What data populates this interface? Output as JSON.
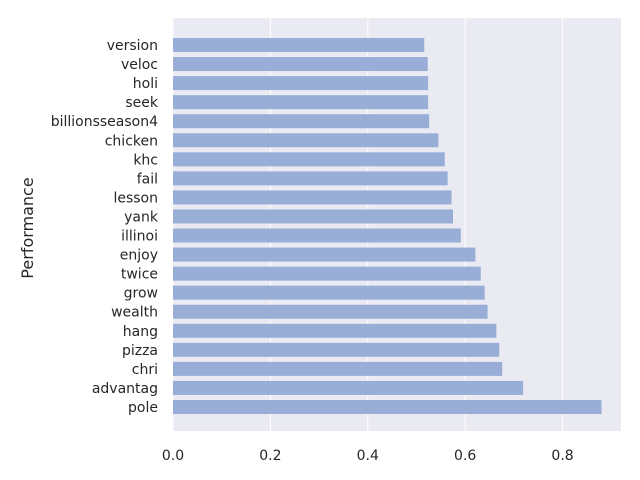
{
  "chart_data": {
    "type": "bar",
    "orientation": "horizontal",
    "title": "",
    "xlabel": "",
    "ylabel": "Performance",
    "xlim": [
      0,
      0.92
    ],
    "x_ticks": [
      0.0,
      0.2,
      0.4,
      0.6,
      0.8
    ],
    "x_tick_labels": [
      "0.0",
      "0.2",
      "0.4",
      "0.6",
      "0.8"
    ],
    "grid": true,
    "categories": [
      "version",
      "veloc",
      "holi",
      "seek",
      "billionsseason4",
      "chicken",
      "khc",
      "fail",
      "lesson",
      "yank",
      "illinoi",
      "enjoy",
      "twice",
      "grow",
      "wealth",
      "hang",
      "pizza",
      "chri",
      "advantag",
      "pole"
    ],
    "values": [
      0.516,
      0.523,
      0.524,
      0.524,
      0.526,
      0.545,
      0.558,
      0.564,
      0.572,
      0.575,
      0.591,
      0.621,
      0.632,
      0.64,
      0.646,
      0.664,
      0.67,
      0.676,
      0.719,
      0.88
    ],
    "colors": {
      "bar": "#98aed6",
      "plot_bg": "#eaeaf2",
      "grid": "#ffffff",
      "text": "#262626"
    }
  }
}
